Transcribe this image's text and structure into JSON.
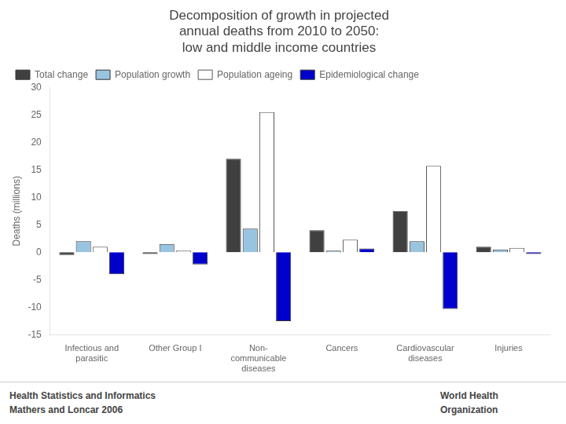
{
  "chart_data": {
    "type": "bar",
    "title": [
      "Decomposition of growth in projected",
      "annual deaths from 2010 to 2050:",
      "low and middle income countries"
    ],
    "y_label": "Deaths (millions)",
    "categories": [
      "Infectious and\nparasitic",
      "Other Group I",
      "Non-\ncommunicable\ndiseases",
      "Cancers",
      "Cardiovascular\ndiseases",
      "Injuries"
    ],
    "series": [
      {
        "name": "Total change",
        "color": "#404040",
        "values": [
          -0.5,
          -0.3,
          17.0,
          4.0,
          7.5,
          1.0
        ]
      },
      {
        "name": "Population growth",
        "color": "#99C4E0",
        "values": [
          2.0,
          1.5,
          4.3,
          0.3,
          2.0,
          0.5
        ]
      },
      {
        "name": "Population ageing",
        "color": "#FFFFFF",
        "values": [
          1.0,
          0.3,
          25.5,
          2.3,
          15.7,
          0.8
        ]
      },
      {
        "name": "Epidemiological change",
        "color": "#0000CD",
        "values": [
          -4.0,
          -2.2,
          -12.5,
          0.7,
          -10.3,
          -0.3
        ]
      }
    ],
    "ylim": [
      -15,
      30
    ],
    "yticks": [
      -15,
      -10,
      -5,
      0,
      5,
      10,
      15,
      20,
      25,
      30
    ],
    "grid": false,
    "legend": "upper left",
    "annotations": [
      "Health Statistics and Informatics",
      "Mathers and Loncar 2006",
      "World Health",
      "Organization"
    ]
  }
}
